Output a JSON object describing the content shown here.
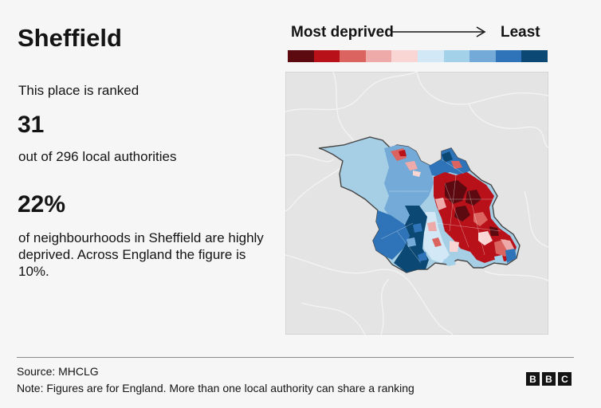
{
  "title": "Sheffield",
  "rank": {
    "intro": "This place is ranked",
    "value": "31",
    "out_of": "out of 296 local authorities"
  },
  "deprivation": {
    "value": "22%",
    "description": "of neighbourhoods in Sheffield are highly deprived. Across England the figure is 10%."
  },
  "legend": {
    "left_label": "Most deprived",
    "right_label": "Least",
    "colors": [
      "#5c0a10",
      "#b8111a",
      "#dc6460",
      "#eeaaa8",
      "#f9d6d4",
      "#d2e8f6",
      "#a4d1ea",
      "#74aad8",
      "#2f74b8",
      "#0c4874"
    ]
  },
  "footer": {
    "source": "Source: MHCLG",
    "note": "Note: Figures are for England. More than one local authority can share a ranking",
    "logo_letters": [
      "B",
      "B",
      "C"
    ]
  }
}
